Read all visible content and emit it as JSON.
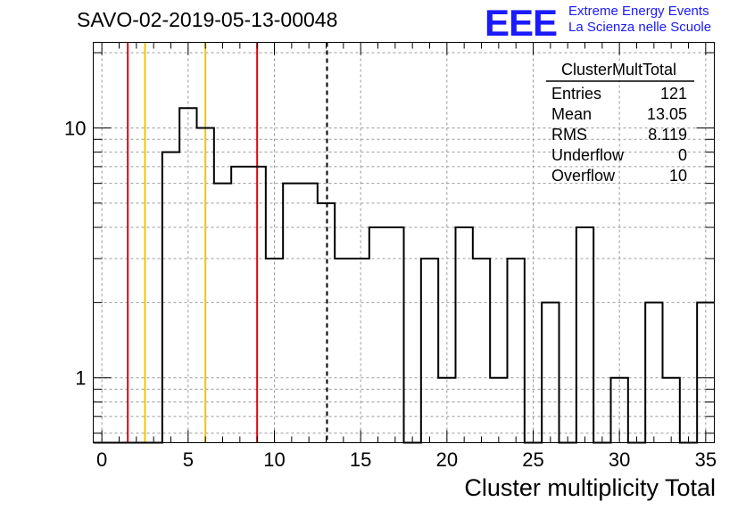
{
  "header": {
    "title": "SAVO-02-2019-05-13-00048",
    "logo_text": "EEE",
    "logo_line1": "Extreme Energy Events",
    "logo_line2": "La Scienza nelle Scuole"
  },
  "stats": {
    "name": "ClusterMultTotal",
    "rows": [
      {
        "label": "Entries",
        "value": "121"
      },
      {
        "label": "Mean",
        "value": "13.05"
      },
      {
        "label": "RMS",
        "value": "8.119"
      },
      {
        "label": "Underflow",
        "value": "0"
      },
      {
        "label": "Overflow",
        "value": "10"
      }
    ]
  },
  "chart_data": {
    "type": "histogram",
    "title": "SAVO-02-2019-05-13-00048",
    "xlabel": "Cluster multiplicity Total",
    "ylabel": "",
    "xlim": [
      -0.5,
      35.5
    ],
    "ylim": [
      0.55,
      22
    ],
    "yscale": "log",
    "grid": true,
    "bin_width": 1,
    "x_ticks": [
      0,
      5,
      10,
      15,
      20,
      25,
      30,
      35
    ],
    "y_ticks": [
      1,
      10
    ],
    "bins": [
      {
        "x": 0,
        "y": 0
      },
      {
        "x": 1,
        "y": 0
      },
      {
        "x": 2,
        "y": 0
      },
      {
        "x": 3,
        "y": 0
      },
      {
        "x": 4,
        "y": 8
      },
      {
        "x": 5,
        "y": 12
      },
      {
        "x": 6,
        "y": 10
      },
      {
        "x": 7,
        "y": 6
      },
      {
        "x": 8,
        "y": 7
      },
      {
        "x": 9,
        "y": 7
      },
      {
        "x": 10,
        "y": 3
      },
      {
        "x": 11,
        "y": 6
      },
      {
        "x": 12,
        "y": 6
      },
      {
        "x": 13,
        "y": 5
      },
      {
        "x": 14,
        "y": 3
      },
      {
        "x": 15,
        "y": 3
      },
      {
        "x": 16,
        "y": 4
      },
      {
        "x": 17,
        "y": 4
      },
      {
        "x": 18,
        "y": 0
      },
      {
        "x": 19,
        "y": 3
      },
      {
        "x": 20,
        "y": 1
      },
      {
        "x": 21,
        "y": 4
      },
      {
        "x": 22,
        "y": 3
      },
      {
        "x": 23,
        "y": 1
      },
      {
        "x": 24,
        "y": 3
      },
      {
        "x": 25,
        "y": 0
      },
      {
        "x": 26,
        "y": 2
      },
      {
        "x": 27,
        "y": 0
      },
      {
        "x": 28,
        "y": 4
      },
      {
        "x": 29,
        "y": 0
      },
      {
        "x": 30,
        "y": 1
      },
      {
        "x": 31,
        "y": 0
      },
      {
        "x": 32,
        "y": 2
      },
      {
        "x": 33,
        "y": 1
      },
      {
        "x": 34,
        "y": 0
      },
      {
        "x": 35,
        "y": 2
      }
    ],
    "vlines": [
      {
        "x": 1.5,
        "color": "#e8000b",
        "style": "solid"
      },
      {
        "x": 2.5,
        "color": "#f5c400",
        "style": "solid"
      },
      {
        "x": 6.0,
        "color": "#f5c400",
        "style": "solid"
      },
      {
        "x": 9.0,
        "color": "#e8000b",
        "style": "solid"
      },
      {
        "x": 13.05,
        "color": "#000000",
        "style": "dashed"
      }
    ]
  }
}
